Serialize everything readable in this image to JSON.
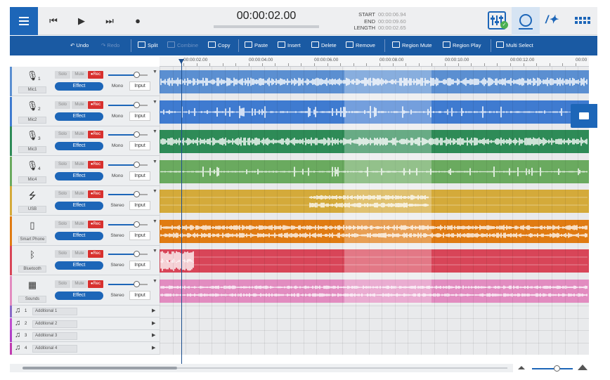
{
  "transport": {
    "current_time": "00:00:02.00",
    "start_label": "START",
    "start_value": "00:00:06.94",
    "end_label": "END",
    "end_value": "00:00:09.60",
    "length_label": "LENGTH",
    "length_value": "00:00:02.65"
  },
  "toolbar": {
    "undo": "Undo",
    "redo": "Redo",
    "split": "Split",
    "combine": "Combine",
    "copy": "Copy",
    "paste": "Paste",
    "insert": "Insert",
    "delete": "Delete",
    "remove": "Remove",
    "region_mute": "Region Mute",
    "region_play": "Region Play",
    "multi_select": "Multi Select"
  },
  "ruler": [
    "00:00:02.00",
    "00:00:04.00",
    "00:00:06.00",
    "00:00:08.00",
    "00:00:10.00",
    "00:00:12.00",
    "00:00"
  ],
  "buttons": {
    "solo": "Solo",
    "mute": "Mute",
    "rec": "●Rec",
    "effect": "Effect",
    "input": "Input"
  },
  "tracks": [
    {
      "num": "1",
      "name": "Mic1",
      "mode": "Mono",
      "icon": "microphone-icon",
      "color": "#5b8fd1"
    },
    {
      "num": "2",
      "name": "Mic2",
      "mode": "Mono",
      "icon": "microphone-icon",
      "color": "#3f7bd0"
    },
    {
      "num": "3",
      "name": "Mic3",
      "mode": "Mono",
      "icon": "microphone-icon",
      "color": "#2e8b57"
    },
    {
      "num": "4",
      "name": "Mic4",
      "mode": "Mono",
      "icon": "microphone-icon",
      "color": "#6aaa5f"
    },
    {
      "num": "",
      "name": "USB",
      "mode": "Stereo",
      "icon": "usb-icon",
      "color": "#d4aa3a"
    },
    {
      "num": "",
      "name": "Smart Phone",
      "mode": "Stereo",
      "icon": "smartphone-icon",
      "color": "#e07b12"
    },
    {
      "num": "",
      "name": "Bluetooth",
      "mode": "Stereo",
      "icon": "bluetooth-icon",
      "color": "#d84558"
    },
    {
      "num": "",
      "name": "Sounds",
      "mode": "Stereo",
      "icon": "sound-pads-icon",
      "color": "#e28cc0"
    }
  ],
  "additional": [
    {
      "num": "1",
      "name": "Additional 1",
      "color": "#8a6ac8"
    },
    {
      "num": "2",
      "name": "Additional 2",
      "color": "#c04fd0"
    },
    {
      "num": "3",
      "name": "Additional 3",
      "color": "#b040c8"
    },
    {
      "num": "4",
      "name": "Additional 4",
      "color": "#c03cb0"
    }
  ],
  "icons": {
    "menu": "hamburger-menu-icon",
    "prev": "skip-back-icon",
    "play": "play-icon",
    "next": "skip-forward-icon",
    "record": "record-icon",
    "mixer": "mixer-icon",
    "history": "history-icon",
    "fx": "magic-wand-icon",
    "pads": "pads-grid-icon",
    "folder": "folder-icon"
  },
  "zoom_level": 0.6
}
